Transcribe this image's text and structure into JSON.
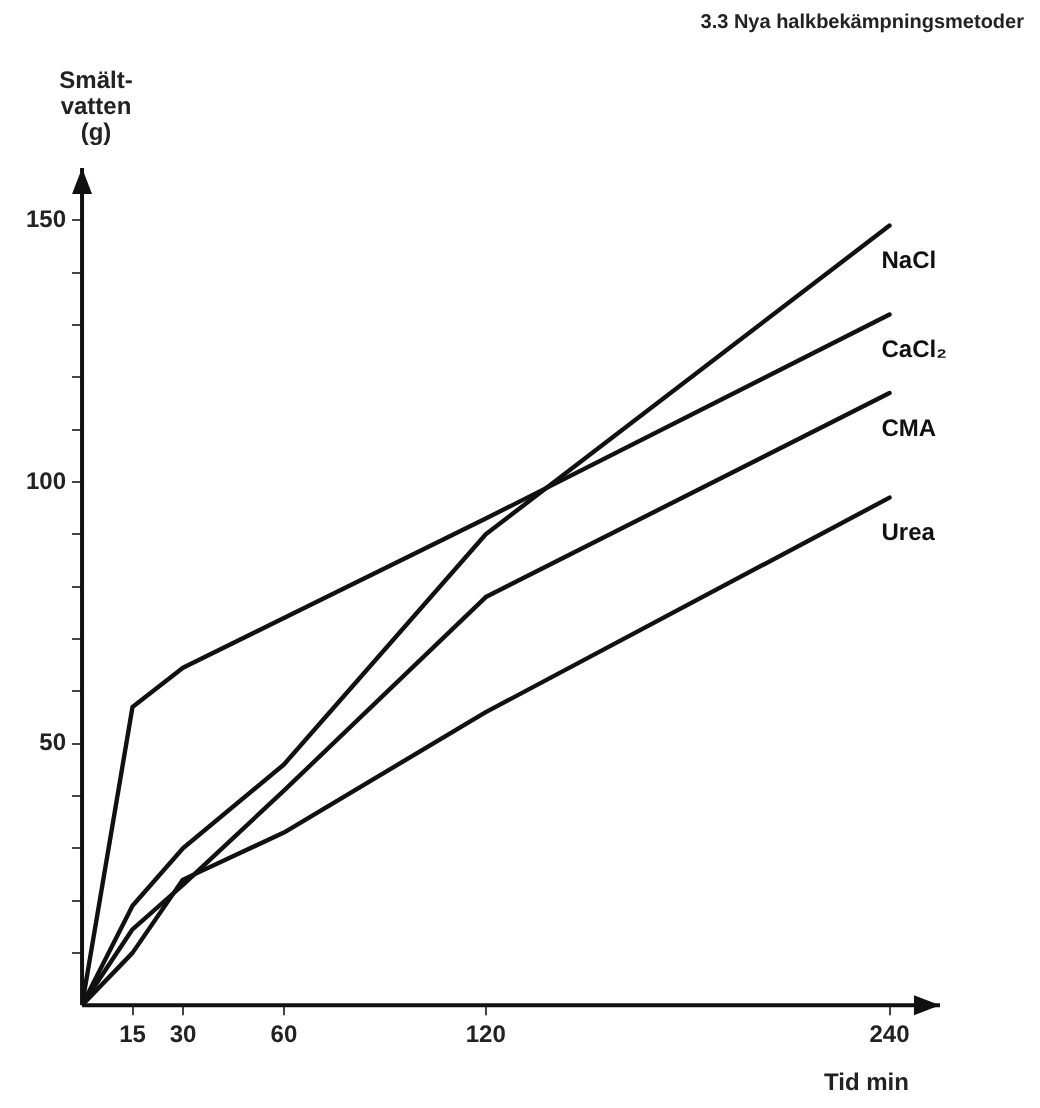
{
  "chart_data": {
    "type": "line",
    "title": "3.3 Nya halkbekämpningsmetoder",
    "ylabel": "Smält-\nvatten\n(g)",
    "xlabel": "Tid min",
    "x": [
      0,
      15,
      30,
      60,
      120,
      240
    ],
    "series": [
      {
        "name": "NaCl",
        "color": "#111111",
        "values": [
          0,
          19,
          30,
          46,
          90,
          149
        ]
      },
      {
        "name": "CaCl₂",
        "color": "#111111",
        "values": [
          0,
          57,
          64.5,
          74,
          93,
          132
        ]
      },
      {
        "name": "CMA",
        "color": "#111111",
        "values": [
          0,
          14.5,
          23,
          41,
          78,
          117
        ]
      },
      {
        "name": "Urea",
        "color": "#111111",
        "values": [
          0,
          10,
          24,
          33,
          56,
          97
        ]
      }
    ],
    "xlim": [
      0,
      255
    ],
    "xticks": [
      15,
      30,
      60,
      120,
      240
    ],
    "ylim": [
      0,
      160
    ],
    "yticks": [
      {
        "value": 10,
        "label": null
      },
      {
        "value": 20,
        "label": null
      },
      {
        "value": 30,
        "label": null
      },
      {
        "value": 40,
        "label": null
      },
      50,
      {
        "value": 60,
        "label": null
      },
      {
        "value": 70,
        "label": null
      },
      {
        "value": 80,
        "label": null
      },
      {
        "value": 90,
        "label": null
      },
      100,
      {
        "value": 110,
        "label": null
      },
      {
        "value": 120,
        "label": null
      },
      {
        "value": 130,
        "label": null
      },
      {
        "value": 140,
        "label": null
      },
      150
    ],
    "grid": false,
    "legend": false,
    "marker": "none",
    "line_style": "solid"
  }
}
